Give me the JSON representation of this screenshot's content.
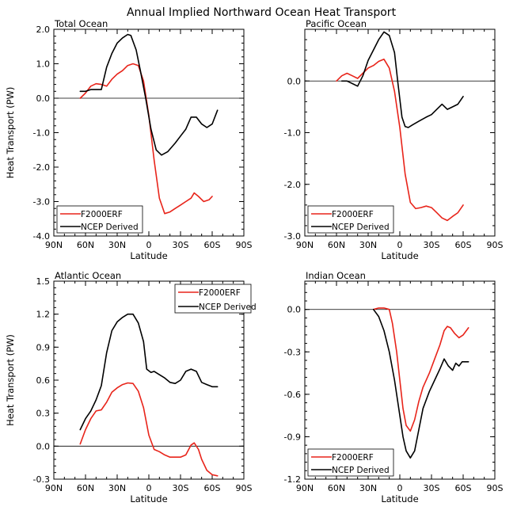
{
  "figure": {
    "title": "Annual Implied Northward Ocean Heat Transport"
  },
  "chart_data": [
    {
      "type": "line",
      "title": "Total Ocean",
      "xlabel": "Latitude",
      "ylabel": "Heat Transport (PW)",
      "xlim": [
        90,
        -90
      ],
      "ylim": [
        -4.0,
        2.0
      ],
      "xticks": [
        90,
        60,
        30,
        0,
        -30,
        -60,
        -90
      ],
      "xtick_labels": [
        "90N",
        "60N",
        "30N",
        "0",
        "30S",
        "60S",
        "90S"
      ],
      "yticks": [
        -4.0,
        -3.0,
        -2.0,
        -1.0,
        0.0,
        1.0,
        2.0
      ],
      "ytick_labels": [
        "-4.0",
        "-3.0",
        "-2.0",
        "-1.0",
        "0.0",
        "1.0",
        "2.0"
      ],
      "zero_line": true,
      "legend_position": "bottom-left",
      "series": [
        {
          "name": "F2000ERF",
          "color": "#e8241a",
          "points": [
            [
              65,
              0.0
            ],
            [
              60,
              0.15
            ],
            [
              55,
              0.35
            ],
            [
              50,
              0.42
            ],
            [
              45,
              0.4
            ],
            [
              40,
              0.35
            ],
            [
              35,
              0.55
            ],
            [
              30,
              0.7
            ],
            [
              25,
              0.8
            ],
            [
              20,
              0.95
            ],
            [
              15,
              1.0
            ],
            [
              10,
              0.95
            ],
            [
              5,
              0.5
            ],
            [
              0,
              -0.5
            ],
            [
              -5,
              -1.8
            ],
            [
              -10,
              -2.9
            ],
            [
              -15,
              -3.35
            ],
            [
              -20,
              -3.3
            ],
            [
              -25,
              -3.2
            ],
            [
              -30,
              -3.1
            ],
            [
              -35,
              -3.0
            ],
            [
              -40,
              -2.9
            ],
            [
              -43,
              -2.75
            ],
            [
              -47,
              -2.85
            ],
            [
              -52,
              -3.0
            ],
            [
              -57,
              -2.95
            ],
            [
              -60,
              -2.85
            ]
          ]
        },
        {
          "name": "NCEP Derived",
          "color": "#000000",
          "points": [
            [
              65,
              0.2
            ],
            [
              60,
              0.2
            ],
            [
              55,
              0.25
            ],
            [
              50,
              0.25
            ],
            [
              45,
              0.25
            ],
            [
              40,
              0.9
            ],
            [
              35,
              1.3
            ],
            [
              30,
              1.6
            ],
            [
              25,
              1.75
            ],
            [
              20,
              1.85
            ],
            [
              17,
              1.82
            ],
            [
              12,
              1.4
            ],
            [
              8,
              0.8
            ],
            [
              3,
              0.0
            ],
            [
              -2,
              -0.9
            ],
            [
              -7,
              -1.5
            ],
            [
              -12,
              -1.65
            ],
            [
              -18,
              -1.55
            ],
            [
              -25,
              -1.3
            ],
            [
              -30,
              -1.1
            ],
            [
              -35,
              -0.9
            ],
            [
              -40,
              -0.55
            ],
            [
              -45,
              -0.55
            ],
            [
              -50,
              -0.75
            ],
            [
              -55,
              -0.85
            ],
            [
              -60,
              -0.75
            ],
            [
              -65,
              -0.35
            ]
          ]
        }
      ]
    },
    {
      "type": "line",
      "title": "Pacific Ocean",
      "xlabel": "Latitude",
      "ylabel": "",
      "xlim": [
        90,
        -90
      ],
      "ylim": [
        -3.0,
        1.0
      ],
      "xticks": [
        90,
        60,
        30,
        0,
        -30,
        -60,
        -90
      ],
      "xtick_labels": [
        "90N",
        "60N",
        "30N",
        "0",
        "30S",
        "60S",
        "90S"
      ],
      "yticks": [
        -3.0,
        -2.0,
        -1.0,
        0.0
      ],
      "ytick_labels": [
        "-3.0",
        "-2.0",
        "-1.0",
        "0.0"
      ],
      "zero_line": true,
      "legend_position": "bottom-left",
      "series": [
        {
          "name": "F2000ERF",
          "color": "#e8241a",
          "points": [
            [
              60,
              0.0
            ],
            [
              55,
              0.1
            ],
            [
              50,
              0.15
            ],
            [
              45,
              0.1
            ],
            [
              40,
              0.05
            ],
            [
              35,
              0.15
            ],
            [
              30,
              0.25
            ],
            [
              25,
              0.3
            ],
            [
              20,
              0.38
            ],
            [
              15,
              0.42
            ],
            [
              10,
              0.25
            ],
            [
              5,
              -0.2
            ],
            [
              0,
              -0.9
            ],
            [
              -5,
              -1.8
            ],
            [
              -10,
              -2.35
            ],
            [
              -15,
              -2.47
            ],
            [
              -20,
              -2.45
            ],
            [
              -25,
              -2.42
            ],
            [
              -30,
              -2.45
            ],
            [
              -35,
              -2.55
            ],
            [
              -40,
              -2.65
            ],
            [
              -45,
              -2.7
            ],
            [
              -50,
              -2.62
            ],
            [
              -55,
              -2.55
            ],
            [
              -60,
              -2.4
            ]
          ]
        },
        {
          "name": "NCEP Derived",
          "color": "#000000",
          "points": [
            [
              55,
              0.0
            ],
            [
              50,
              0.0
            ],
            [
              45,
              -0.05
            ],
            [
              40,
              -0.1
            ],
            [
              35,
              0.1
            ],
            [
              30,
              0.4
            ],
            [
              25,
              0.6
            ],
            [
              20,
              0.8
            ],
            [
              15,
              0.95
            ],
            [
              10,
              0.88
            ],
            [
              5,
              0.55
            ],
            [
              2,
              0.0
            ],
            [
              -2,
              -0.7
            ],
            [
              -5,
              -0.88
            ],
            [
              -8,
              -0.9
            ],
            [
              -12,
              -0.85
            ],
            [
              -18,
              -0.78
            ],
            [
              -25,
              -0.7
            ],
            [
              -30,
              -0.65
            ],
            [
              -35,
              -0.55
            ],
            [
              -40,
              -0.45
            ],
            [
              -45,
              -0.55
            ],
            [
              -50,
              -0.5
            ],
            [
              -55,
              -0.45
            ],
            [
              -60,
              -0.3
            ]
          ]
        }
      ]
    },
    {
      "type": "line",
      "title": "Atlantic Ocean",
      "xlabel": "Latitude",
      "ylabel": "Heat Transport (PW)",
      "xlim": [
        90,
        -90
      ],
      "ylim": [
        -0.3,
        1.5
      ],
      "xticks": [
        90,
        60,
        30,
        0,
        -30,
        -60,
        -90
      ],
      "xtick_labels": [
        "90N",
        "60N",
        "30N",
        "0",
        "30S",
        "60S",
        "90S"
      ],
      "yticks": [
        -0.3,
        0.0,
        0.3,
        0.6,
        0.9,
        1.2,
        1.5
      ],
      "ytick_labels": [
        "-0.3",
        "0.0",
        "0.3",
        "0.6",
        "0.9",
        "1.2",
        "1.5"
      ],
      "zero_line": true,
      "legend_position": "top-right",
      "series": [
        {
          "name": "F2000ERF",
          "color": "#e8241a",
          "points": [
            [
              65,
              0.02
            ],
            [
              60,
              0.15
            ],
            [
              55,
              0.25
            ],
            [
              50,
              0.32
            ],
            [
              45,
              0.33
            ],
            [
              40,
              0.4
            ],
            [
              35,
              0.49
            ],
            [
              30,
              0.53
            ],
            [
              25,
              0.56
            ],
            [
              20,
              0.575
            ],
            [
              15,
              0.57
            ],
            [
              10,
              0.5
            ],
            [
              5,
              0.35
            ],
            [
              0,
              0.1
            ],
            [
              -5,
              -0.03
            ],
            [
              -10,
              -0.05
            ],
            [
              -15,
              -0.08
            ],
            [
              -20,
              -0.1
            ],
            [
              -25,
              -0.1
            ],
            [
              -30,
              -0.1
            ],
            [
              -35,
              -0.08
            ],
            [
              -40,
              0.01
            ],
            [
              -43,
              0.03
            ],
            [
              -47,
              -0.03
            ],
            [
              -50,
              -0.12
            ],
            [
              -55,
              -0.22
            ],
            [
              -60,
              -0.26
            ],
            [
              -65,
              -0.27
            ]
          ]
        },
        {
          "name": "NCEP Derived",
          "color": "#000000",
          "points": [
            [
              65,
              0.15
            ],
            [
              60,
              0.25
            ],
            [
              55,
              0.32
            ],
            [
              50,
              0.42
            ],
            [
              45,
              0.55
            ],
            [
              40,
              0.85
            ],
            [
              35,
              1.05
            ],
            [
              30,
              1.13
            ],
            [
              25,
              1.17
            ],
            [
              20,
              1.2
            ],
            [
              15,
              1.2
            ],
            [
              10,
              1.12
            ],
            [
              5,
              0.95
            ],
            [
              2,
              0.7
            ],
            [
              -2,
              0.67
            ],
            [
              -5,
              0.68
            ],
            [
              -10,
              0.65
            ],
            [
              -15,
              0.62
            ],
            [
              -20,
              0.58
            ],
            [
              -25,
              0.57
            ],
            [
              -30,
              0.6
            ],
            [
              -35,
              0.68
            ],
            [
              -40,
              0.7
            ],
            [
              -45,
              0.68
            ],
            [
              -50,
              0.58
            ],
            [
              -55,
              0.56
            ],
            [
              -60,
              0.54
            ],
            [
              -65,
              0.54
            ]
          ]
        }
      ]
    },
    {
      "type": "line",
      "title": "Indian Ocean",
      "xlabel": "Latitude",
      "ylabel": "",
      "xlim": [
        90,
        -90
      ],
      "ylim": [
        -1.2,
        0.2
      ],
      "xticks": [
        90,
        60,
        30,
        0,
        -30,
        -60,
        -90
      ],
      "xtick_labels": [
        "90N",
        "60N",
        "30N",
        "0",
        "30S",
        "60S",
        "90S"
      ],
      "yticks": [
        -1.2,
        -0.9,
        -0.6,
        -0.3,
        0.0
      ],
      "ytick_labels": [
        "-1.2",
        "-0.9",
        "-0.6",
        "-0.3",
        "0.0"
      ],
      "zero_line": true,
      "legend_position": "bottom-left",
      "series": [
        {
          "name": "F2000ERF",
          "color": "#e8241a",
          "points": [
            [
              25,
              0.0
            ],
            [
              20,
              0.01
            ],
            [
              15,
              0.01
            ],
            [
              10,
              0.0
            ],
            [
              7,
              -0.1
            ],
            [
              3,
              -0.3
            ],
            [
              0,
              -0.5
            ],
            [
              -3,
              -0.7
            ],
            [
              -6,
              -0.82
            ],
            [
              -10,
              -0.86
            ],
            [
              -14,
              -0.78
            ],
            [
              -18,
              -0.65
            ],
            [
              -22,
              -0.55
            ],
            [
              -28,
              -0.45
            ],
            [
              -33,
              -0.35
            ],
            [
              -38,
              -0.25
            ],
            [
              -42,
              -0.15
            ],
            [
              -45,
              -0.12
            ],
            [
              -48,
              -0.13
            ],
            [
              -52,
              -0.17
            ],
            [
              -56,
              -0.2
            ],
            [
              -60,
              -0.18
            ],
            [
              -65,
              -0.13
            ]
          ]
        },
        {
          "name": "NCEP Derived",
          "color": "#000000",
          "points": [
            [
              25,
              0.0
            ],
            [
              20,
              -0.05
            ],
            [
              15,
              -0.15
            ],
            [
              10,
              -0.3
            ],
            [
              5,
              -0.5
            ],
            [
              0,
              -0.75
            ],
            [
              -3,
              -0.9
            ],
            [
              -6,
              -1.0
            ],
            [
              -10,
              -1.05
            ],
            [
              -14,
              -1.0
            ],
            [
              -18,
              -0.85
            ],
            [
              -22,
              -0.7
            ],
            [
              -28,
              -0.58
            ],
            [
              -33,
              -0.5
            ],
            [
              -38,
              -0.42
            ],
            [
              -42,
              -0.35
            ],
            [
              -46,
              -0.4
            ],
            [
              -50,
              -0.43
            ],
            [
              -53,
              -0.38
            ],
            [
              -56,
              -0.4
            ],
            [
              -59,
              -0.37
            ],
            [
              -65,
              -0.37
            ]
          ]
        }
      ]
    }
  ]
}
